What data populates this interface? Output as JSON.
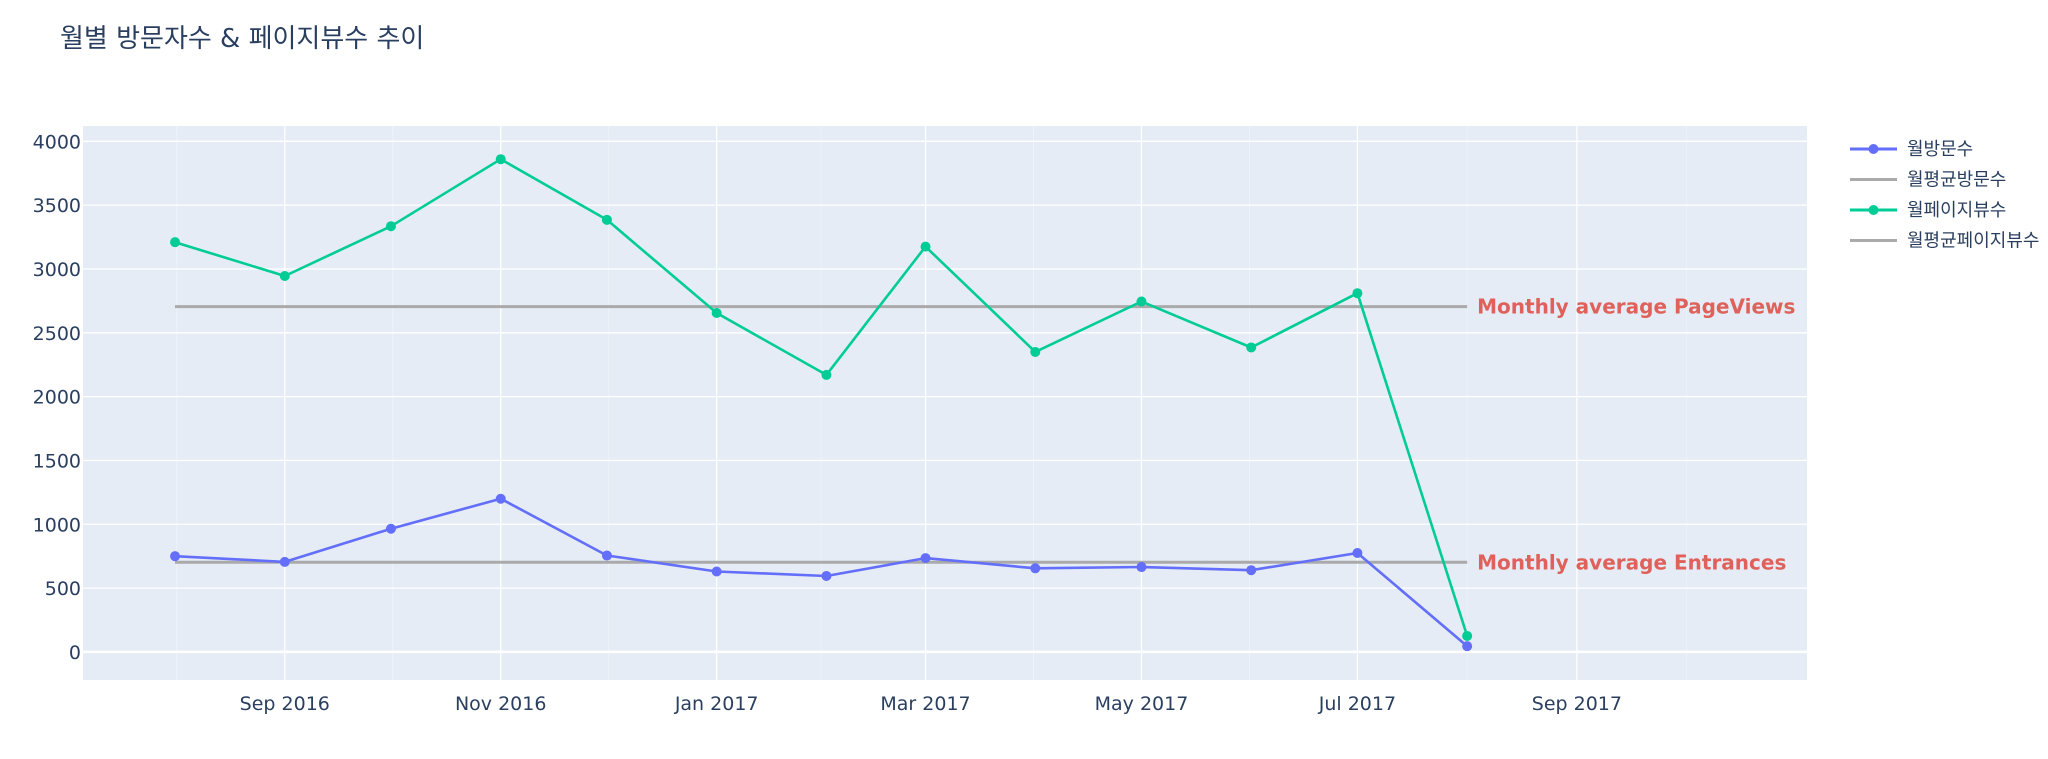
{
  "title": "월별 방문자수 & 페이지뷰수 추이",
  "chart_data": {
    "type": "line",
    "title": "월별 방문자수 & 페이지뷰수 추이",
    "xlabel": "",
    "ylabel": "",
    "x": [
      "2016-08-01",
      "2016-09-01",
      "2016-10-01",
      "2016-11-01",
      "2016-12-01",
      "2017-01-01",
      "2017-02-01",
      "2017-03-01",
      "2017-04-01",
      "2017-05-01",
      "2017-06-01",
      "2017-07-01",
      "2017-08-01"
    ],
    "xlim": [
      "2016-07-06",
      "2017-11-05"
    ],
    "xticks": [
      "2016-09-01",
      "2016-11-01",
      "2017-01-01",
      "2017-03-01",
      "2017-05-01",
      "2017-07-01",
      "2017-09-01"
    ],
    "xtick_labels": [
      "Sep 2016",
      "Nov 2016",
      "Jan 2017",
      "Mar 2017",
      "May 2017",
      "Jul 2017",
      "Sep 2017"
    ],
    "ylim": [
      -220,
      4120
    ],
    "yticks": [
      0,
      500,
      1000,
      1500,
      2000,
      2500,
      3000,
      3500,
      4000
    ],
    "grid": true,
    "legend_position": "top-right",
    "series": [
      {
        "name": "월방문수",
        "mode": "lines+markers",
        "color": "#636efa",
        "values": [
          750,
          705,
          965,
          1200,
          755,
          630,
          595,
          735,
          655,
          665,
          640,
          775,
          45
        ]
      },
      {
        "name": "월평균방문수",
        "mode": "lines",
        "color": "#aaaaaa",
        "values": [
          702,
          702,
          702,
          702,
          702,
          702,
          702,
          702,
          702,
          702,
          702,
          702,
          702
        ]
      },
      {
        "name": "월페이지뷰수",
        "mode": "lines+markers",
        "color": "#00cc96",
        "values": [
          3210,
          2945,
          3335,
          3860,
          3385,
          2655,
          2170,
          3175,
          2350,
          2745,
          2385,
          2810,
          125
        ]
      },
      {
        "name": "월평균페이지뷰수",
        "mode": "lines",
        "color": "#aaaaaa",
        "values": [
          2705,
          2705,
          2705,
          2705,
          2705,
          2705,
          2705,
          2705,
          2705,
          2705,
          2705,
          2705,
          2705
        ]
      }
    ],
    "annotations": [
      {
        "text": "Monthly average PageViews",
        "x": "2017-08-01",
        "y": 2705
      },
      {
        "text": "Monthly average Entrances",
        "x": "2017-08-01",
        "y": 702
      }
    ]
  }
}
